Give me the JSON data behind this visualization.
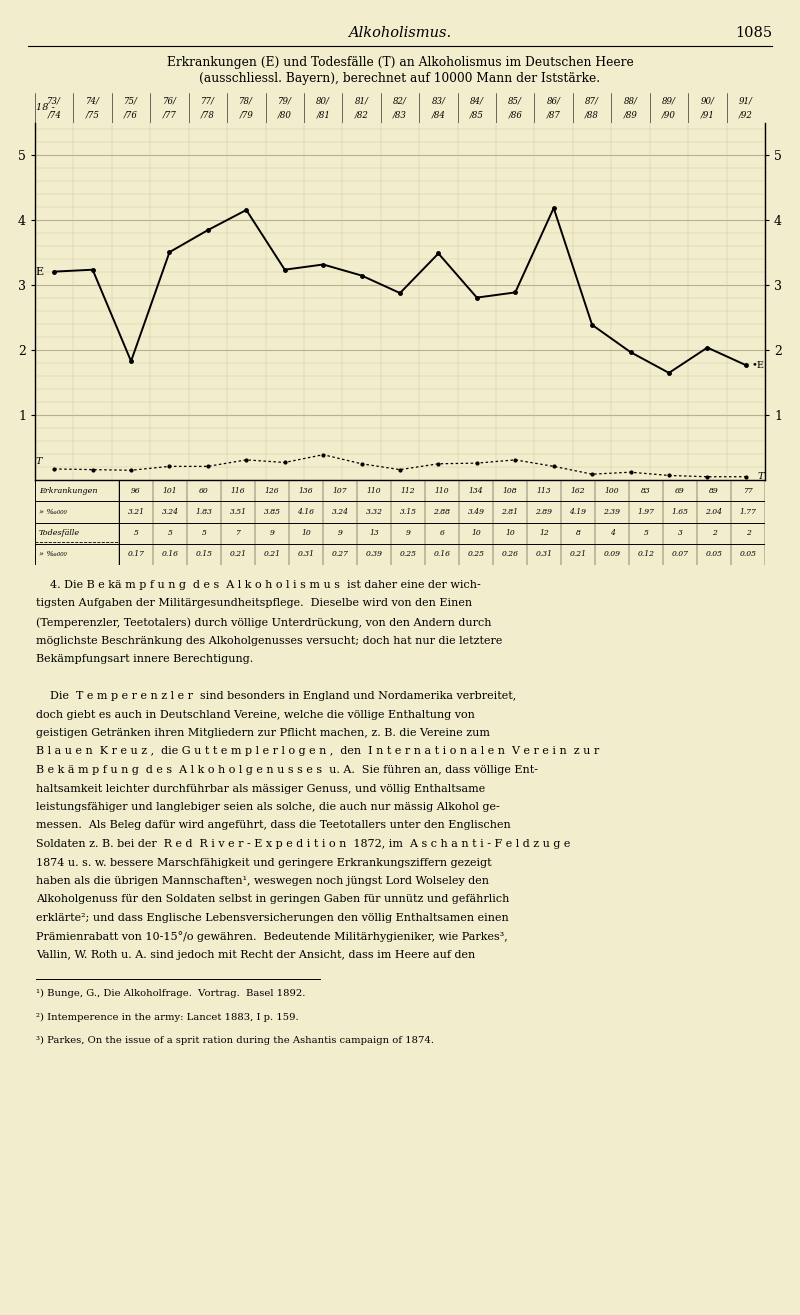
{
  "title_top": "Alkoholismus.",
  "page_num": "1085",
  "chart_title_line1": "Erkrankungen (E) und Todesfälle (T) an Alkoholismus im Deutschen Heere",
  "chart_title_line2": "(ausschliessl. Bayern), berechnet auf 10000 Mann der Iststärke.",
  "x_labels_top": [
    "73/",
    "74/",
    "75/",
    "76/",
    "77/",
    "78/",
    "79/",
    "80/",
    "81/",
    "82/",
    "83/",
    "84/",
    "85/",
    "86/",
    "87/",
    "88/",
    "89/",
    "90/",
    "91/"
  ],
  "x_labels_bot": [
    "/74",
    "/75",
    "/76",
    "/77",
    "/78",
    "/79",
    "/80",
    "/81",
    "/82",
    "/83",
    "/84",
    "/85",
    "/86",
    "/87",
    "/88",
    "/89",
    "/90",
    "/91",
    "/92"
  ],
  "E_values": [
    3.21,
    3.24,
    1.83,
    3.51,
    3.85,
    4.16,
    3.24,
    3.32,
    3.15,
    2.88,
    3.49,
    2.81,
    2.89,
    4.19,
    2.39,
    1.97,
    1.65,
    2.04,
    1.77
  ],
  "T_values": [
    0.17,
    0.16,
    0.15,
    0.21,
    0.21,
    0.31,
    0.27,
    0.39,
    0.25,
    0.16,
    0.25,
    0.26,
    0.31,
    0.21,
    0.09,
    0.12,
    0.07,
    0.05,
    0.05
  ],
  "E_counts": [
    96,
    101,
    60,
    116,
    126,
    136,
    107,
    110,
    112,
    110,
    134,
    108,
    113,
    162,
    100,
    83,
    69,
    89,
    77
  ],
  "T_counts": [
    5,
    5,
    5,
    7,
    9,
    10,
    9,
    13,
    9,
    6,
    10,
    10,
    12,
    8,
    4,
    5,
    3,
    2,
    2
  ],
  "E_pct": [
    3.21,
    3.24,
    1.83,
    3.51,
    3.85,
    4.16,
    3.24,
    3.32,
    3.15,
    2.88,
    3.49,
    2.81,
    2.89,
    4.19,
    2.39,
    1.97,
    1.65,
    2.04,
    1.77
  ],
  "T_pct": [
    0.17,
    0.16,
    0.15,
    0.21,
    0.21,
    0.31,
    0.27,
    0.39,
    0.25,
    0.16,
    0.25,
    0.26,
    0.31,
    0.21,
    0.09,
    0.12,
    0.07,
    0.05,
    0.05
  ],
  "ylim": [
    0,
    5.5
  ],
  "yticks": [
    1,
    2,
    3,
    4,
    5
  ],
  "bg_color": "#f2edcc",
  "grid_major_color": "#b8b090",
  "grid_minor_color": "#ccc898",
  "line_e_color": "#000000",
  "line_t_color": "#000000",
  "text_color": "#000000",
  "body_text": [
    "    4. Die B e kä m p f u n g  d e s  A l k o h o l i s m u s  ist daher eine der wich-",
    "tigsten Aufgaben der Militärgesundheitspflege.  Dieselbe wird von den Einen",
    "(Temperenzler, Teetotalers) durch völlige Unterdrückung, von den Andern durch",
    "möglichste Beschränkung des Alkoholgenusses versucht; doch hat nur die letztere",
    "Bekämpfungsart innere Berechtigung.",
    "",
    "    Die  T e m p e r e n z l e r  sind besonders in England und Nordamerika verbreitet,",
    "doch giebt es auch in Deutschland Vereine, welche die völlige Enthaltung von",
    "geistigen Getränken ihren Mitgliedern zur Pflicht machen, z. B. die Vereine zum",
    "B l a u e n  K r e u z ,  die G u t t e m p l e r l o g e n ,  den  I n t e r n a t i o n a l e n  V e r e i n  z u r",
    "B e k ä m p f u n g  d e s  A l k o h o l g e n u s s e s  u. A.  Sie führen an, dass völlige Ent-",
    "haltsamkeit leichter durchführbar als mässiger Genuss, und völlig Enthaltsame",
    "leistungsfähiger und langlebiger seien als solche, die auch nur mässig Alkohol ge-",
    "messen.  Als Beleg dafür wird angeführt, dass die Teetotallers unter den Englischen",
    "Soldaten z. B. bei der  R e d  R i v e r - E x p e d i t i o n  1872, im  A s c h a n t i - F e l d z u g e",
    "1874 u. s. w. bessere Marschfähigkeit und geringere Erkrankungsziffern gezeigt",
    "haben als die übrigen Mannschaften¹, weswegen noch jüngst Lord Wolseley den",
    "Alkoholgenuss für den Soldaten selbst in geringen Gaben für unnütz und gefährlich",
    "erklärte²; und dass Englische Lebensversicherungen den völlig Enthaltsamen einen",
    "Prämienrabatt von 10-15°/o gewähren.  Bedeutende Militärhygieniker, wie Parkes³,",
    "Vallin, W. Roth u. A. sind jedoch mit Recht der Ansicht, dass im Heere auf den"
  ],
  "footnotes": [
    "¹) Bunge, G., Die Alkoholfrage.  Vortrag.  Basel 1892.",
    "²) Intemperence in the army: Lancet 1883, I p. 159.",
    "³) Parkes, On the issue of a sprit ration during the Ashantis campaign of 1874."
  ]
}
